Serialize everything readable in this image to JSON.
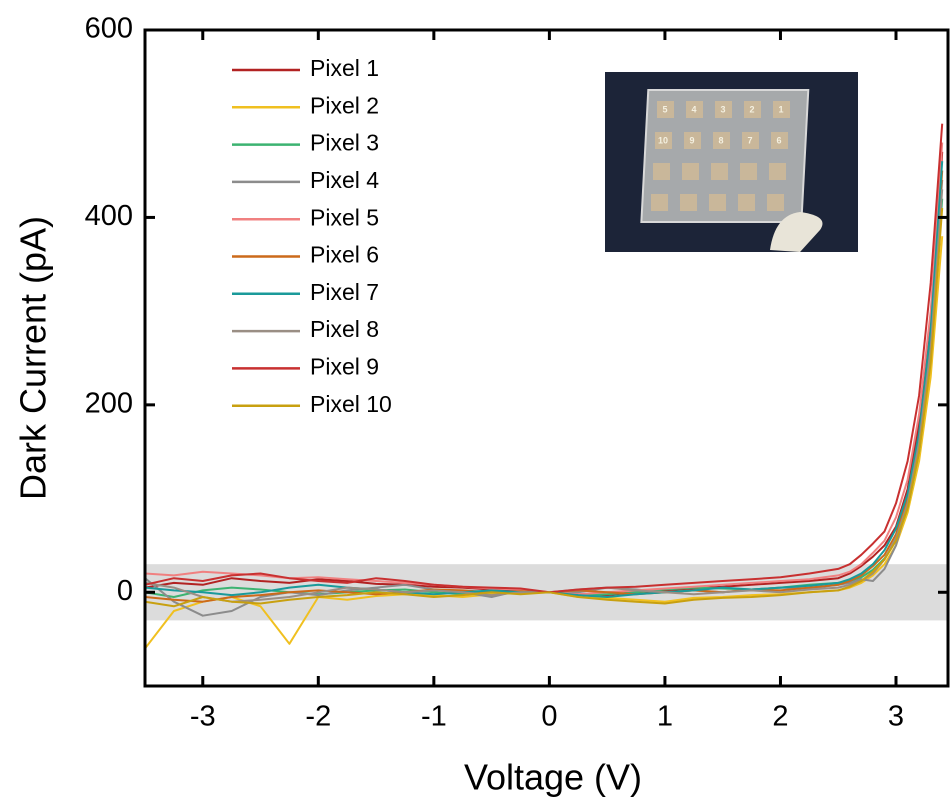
{
  "chart_data": {
    "type": "line",
    "xlabel": "Voltage (V)",
    "ylabel": "Dark Current (pA)",
    "xlim": [
      -3.5,
      3.45
    ],
    "ylim": [
      -100,
      600
    ],
    "xticks": [
      -3,
      -2,
      -1,
      0,
      1,
      2,
      3
    ],
    "yticks": [
      0,
      200,
      400,
      600
    ],
    "shaded_band": [
      -30,
      30
    ],
    "inset_labels": [
      [
        "5",
        "4",
        "3",
        "2",
        "1"
      ],
      [
        "10",
        "9",
        "8",
        "7",
        "6"
      ]
    ],
    "x": [
      -3.5,
      -3.25,
      -3,
      -2.75,
      -2.5,
      -2.25,
      -2,
      -1.75,
      -1.5,
      -1.25,
      -1,
      -0.75,
      -0.5,
      -0.25,
      0,
      0.25,
      0.5,
      0.75,
      1,
      1.25,
      1.5,
      1.75,
      2,
      2.25,
      2.5,
      2.6,
      2.7,
      2.8,
      2.9,
      3,
      3.1,
      3.2,
      3.3,
      3.4
    ],
    "series": [
      {
        "name": "Pixel 1",
        "color": "#b22222",
        "values": [
          5,
          10,
          8,
          15,
          12,
          10,
          14,
          12,
          9,
          8,
          6,
          5,
          3,
          2,
          0,
          -2,
          -3,
          0,
          2,
          4,
          6,
          8,
          10,
          12,
          15,
          20,
          28,
          38,
          50,
          70,
          110,
          180,
          290,
          470
        ]
      },
      {
        "name": "Pixel 2",
        "color": "#f0c020",
        "values": [
          -60,
          -20,
          -10,
          -5,
          -15,
          -55,
          -5,
          -8,
          -4,
          -2,
          -3,
          -5,
          -2,
          0,
          0,
          -5,
          -6,
          -8,
          -10,
          -6,
          -5,
          -3,
          -2,
          0,
          2,
          5,
          10,
          18,
          30,
          50,
          85,
          140,
          230,
          380
        ]
      },
      {
        "name": "Pixel 3",
        "color": "#3cb371",
        "values": [
          0,
          -5,
          2,
          5,
          3,
          0,
          -2,
          0,
          2,
          3,
          0,
          -2,
          0,
          1,
          0,
          -3,
          -2,
          0,
          3,
          5,
          4,
          3,
          5,
          8,
          10,
          12,
          16,
          24,
          36,
          55,
          90,
          150,
          250,
          420
        ]
      },
      {
        "name": "Pixel 4",
        "color": "#8c8c8c",
        "values": [
          15,
          -10,
          -25,
          -20,
          -5,
          0,
          -3,
          2,
          5,
          8,
          3,
          0,
          -5,
          2,
          0,
          0,
          5,
          3,
          0,
          2,
          0,
          3,
          5,
          4,
          8,
          10,
          14,
          12,
          25,
          50,
          95,
          165,
          270,
          440
        ]
      },
      {
        "name": "Pixel 5",
        "color": "#f08080",
        "values": [
          20,
          18,
          22,
          20,
          18,
          15,
          16,
          14,
          12,
          10,
          8,
          6,
          4,
          3,
          0,
          -2,
          0,
          2,
          4,
          6,
          8,
          10,
          12,
          14,
          18,
          22,
          30,
          42,
          55,
          80,
          120,
          190,
          300,
          480
        ]
      },
      {
        "name": "Pixel 6",
        "color": "#cc6a1a",
        "values": [
          -5,
          -8,
          -10,
          -5,
          -3,
          0,
          2,
          0,
          -2,
          0,
          3,
          2,
          0,
          1,
          0,
          2,
          0,
          -2,
          0,
          2,
          0,
          3,
          2,
          5,
          8,
          12,
          18,
          28,
          40,
          62,
          100,
          165,
          270,
          450
        ]
      },
      {
        "name": "Pixel 7",
        "color": "#1a9a9a",
        "values": [
          5,
          2,
          0,
          -3,
          0,
          5,
          8,
          5,
          3,
          0,
          -2,
          0,
          2,
          0,
          0,
          -3,
          -5,
          -2,
          0,
          2,
          5,
          3,
          5,
          7,
          10,
          14,
          20,
          30,
          45,
          68,
          105,
          170,
          280,
          460
        ]
      },
      {
        "name": "Pixel 8",
        "color": "#9a8e84",
        "values": [
          10,
          5,
          -5,
          -10,
          -8,
          -5,
          0,
          5,
          3,
          0,
          2,
          0,
          -3,
          0,
          0,
          3,
          5,
          2,
          0,
          -2,
          0,
          2,
          0,
          3,
          5,
          8,
          12,
          20,
          35,
          58,
          95,
          160,
          260,
          430
        ]
      },
      {
        "name": "Pixel 9",
        "color": "#c83030",
        "values": [
          8,
          15,
          12,
          18,
          20,
          15,
          12,
          10,
          15,
          12,
          8,
          6,
          5,
          4,
          0,
          3,
          5,
          6,
          8,
          10,
          12,
          14,
          16,
          20,
          25,
          30,
          40,
          52,
          65,
          95,
          140,
          210,
          330,
          500
        ]
      },
      {
        "name": "Pixel 10",
        "color": "#c8a010",
        "values": [
          -10,
          -15,
          -5,
          -10,
          -12,
          -8,
          -5,
          -3,
          0,
          -2,
          -5,
          -3,
          0,
          -2,
          0,
          -5,
          -8,
          -10,
          -12,
          -8,
          -6,
          -5,
          -3,
          0,
          2,
          6,
          12,
          22,
          35,
          55,
          90,
          150,
          245,
          410
        ]
      }
    ]
  }
}
